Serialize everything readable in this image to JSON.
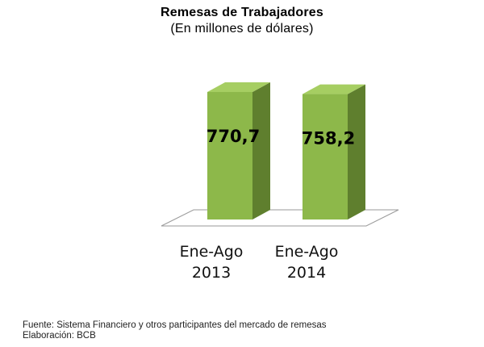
{
  "chart_data": {
    "type": "bar",
    "title": "Remesas de Trabajadores",
    "subtitle": "(En millones de dólares)",
    "categories": [
      [
        "Ene-Ago",
        "2013"
      ],
      [
        "Ene-Ago",
        "2014"
      ]
    ],
    "values": [
      770.7,
      758.2
    ],
    "data_labels": [
      "770,7",
      "758,2"
    ],
    "ylim": [
      0,
      800
    ],
    "grid": false,
    "legend": "none",
    "bar_color": "#8DB84A",
    "bar_side_color": "#5F7F2E",
    "bar_top_color": "#A6CE62"
  },
  "footer": {
    "source": "Fuente: Sistema Financiero y otros participantes del mercado de remesas",
    "credit": "Elaboración: BCB"
  }
}
